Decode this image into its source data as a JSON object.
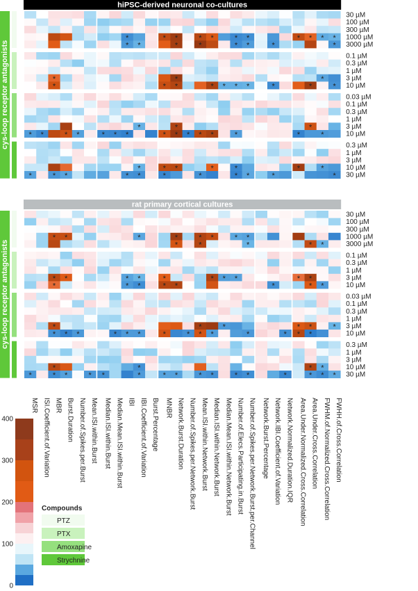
{
  "chart_data": {
    "type": "heatmap",
    "color_scale": {
      "ticks": [
        0,
        100,
        200,
        300,
        400
      ],
      "range": [
        0,
        400
      ],
      "stops": [
        "#1f6fc5",
        "#7ec7ee",
        "#ffffff",
        "#f3a1a8",
        "#e15b15",
        "#7a2a10"
      ]
    },
    "columns": [
      "MSR",
      "ISI.Coefficient.of.Variation",
      "MBR",
      "Burst.Duration",
      "Number.of.Spikes.per.Burst",
      "Mean.ISI.within.Burst",
      "Median.ISI.within.Burst",
      "Median.Mean.ISI.within.Burst",
      "IBI",
      "IBI.Coefficient.of.Variation",
      "Burst.Percentage",
      "MNBR",
      "Network.Burst.Duration",
      "Number.of.Spikes.per.Network.Burst",
      "Mean.ISI.within.Network.Burst",
      "Median.ISI.within.Network.Burst",
      "Median.Mean.ISI.within.Network.Burst",
      "Number.of.Elecs.Participating.in.Burst",
      "Number.of.Spikes.per.Network.Burst.per.Channel",
      "Network.Burst.Percentage",
      "Network.IBI.Coefficient.of.Variation",
      "Network.Normalized.Duration.IQR",
      "Area.Under.Normalized.Cross.Correlation",
      "Area.Under.Cross.Correlation",
      "FWHM.of.Normalized.Cross.Correlation",
      "FWHH.of.Cross.Correlation"
    ],
    "panels": [
      {
        "title": "hiPSC-derived neuronal co-cultures",
        "side_label": "cys-loop receptor antagonists",
        "groups": [
          {
            "compound": "PTZ",
            "concentrations": [
              "30 µM",
              "100 µM",
              "300 µM",
              "1000 µM",
              "3000 µM"
            ]
          },
          {
            "compound": "PTX",
            "concentrations": [
              "0.1 µM",
              "0.3 µM",
              "1 µM",
              "3 µM",
              "10 µM"
            ]
          },
          {
            "compound": "Amoxapine",
            "concentrations": [
              "0.03 µM",
              "0.1 µM",
              "0.3 µM",
              "1 µM",
              "3 µM",
              "10 µM"
            ]
          },
          {
            "compound": "Strychnine",
            "concentrations": [
              "0.3 µM",
              "1 µM",
              "3 µM",
              "10 µM",
              "30 µM"
            ]
          }
        ]
      },
      {
        "title": "rat primary cortical cultures",
        "side_label": "cys-loop receptor antagonists",
        "groups": [
          {
            "compound": "PTZ",
            "concentrations": [
              "30 µM",
              "100 µM",
              "300 µM",
              "1000 µM",
              "3000 µM"
            ]
          },
          {
            "compound": "PTX",
            "concentrations": [
              "0.1 µM",
              "0.3 µM",
              "1 µM",
              "3 µM",
              "10 µM"
            ]
          },
          {
            "compound": "Amoxapine",
            "concentrations": [
              "0.03 µM",
              "0.1 µM",
              "0.3 µM",
              "1 µM",
              "3 µM",
              "10 µM"
            ]
          },
          {
            "compound": "Strychnine",
            "concentrations": [
              "0.3 µM",
              "1 µM",
              "3 µM",
              "10 µM",
              "30 µM"
            ]
          }
        ]
      }
    ],
    "legend": {
      "title": "Compounds",
      "items": [
        {
          "name": "PTZ",
          "color": "#f1fbef"
        },
        {
          "name": "PTX",
          "color": "#c9f2bd"
        },
        {
          "name": "Amoxapine",
          "color": "#95e07e"
        },
        {
          "name": "Strychnine",
          "color": "#5fc83a"
        }
      ]
    }
  }
}
